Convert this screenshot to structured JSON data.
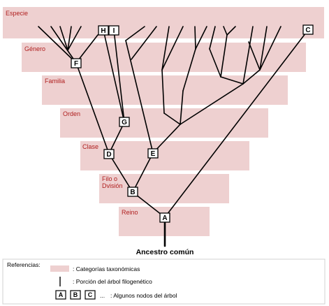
{
  "bands": [
    {
      "label": "Especie"
    },
    {
      "label": "Género"
    },
    {
      "label": "Familia"
    },
    {
      "label": "Orden"
    },
    {
      "label": "Clase"
    },
    {
      "label": "Filo o\nDvisión"
    },
    {
      "label": "Reino"
    }
  ],
  "nodes": {
    "A": "A",
    "B": "B",
    "C": "C",
    "D": "D",
    "E": "E",
    "F": "F",
    "G": "G",
    "H": "H",
    "I": "I"
  },
  "root_label": "Ancestro común",
  "legend": {
    "title": "Referencias:",
    "band_text": ":  Categorías taxonómicas",
    "line_text": ":  Porción del árbol filogenético",
    "boxes": [
      "A",
      "B",
      "C"
    ],
    "dots": "...",
    "boxes_text": ":  Algunos nodos del árbol"
  },
  "colors": {
    "band": "#eed0d0",
    "band_label": "#b02020",
    "line": "#000000"
  }
}
